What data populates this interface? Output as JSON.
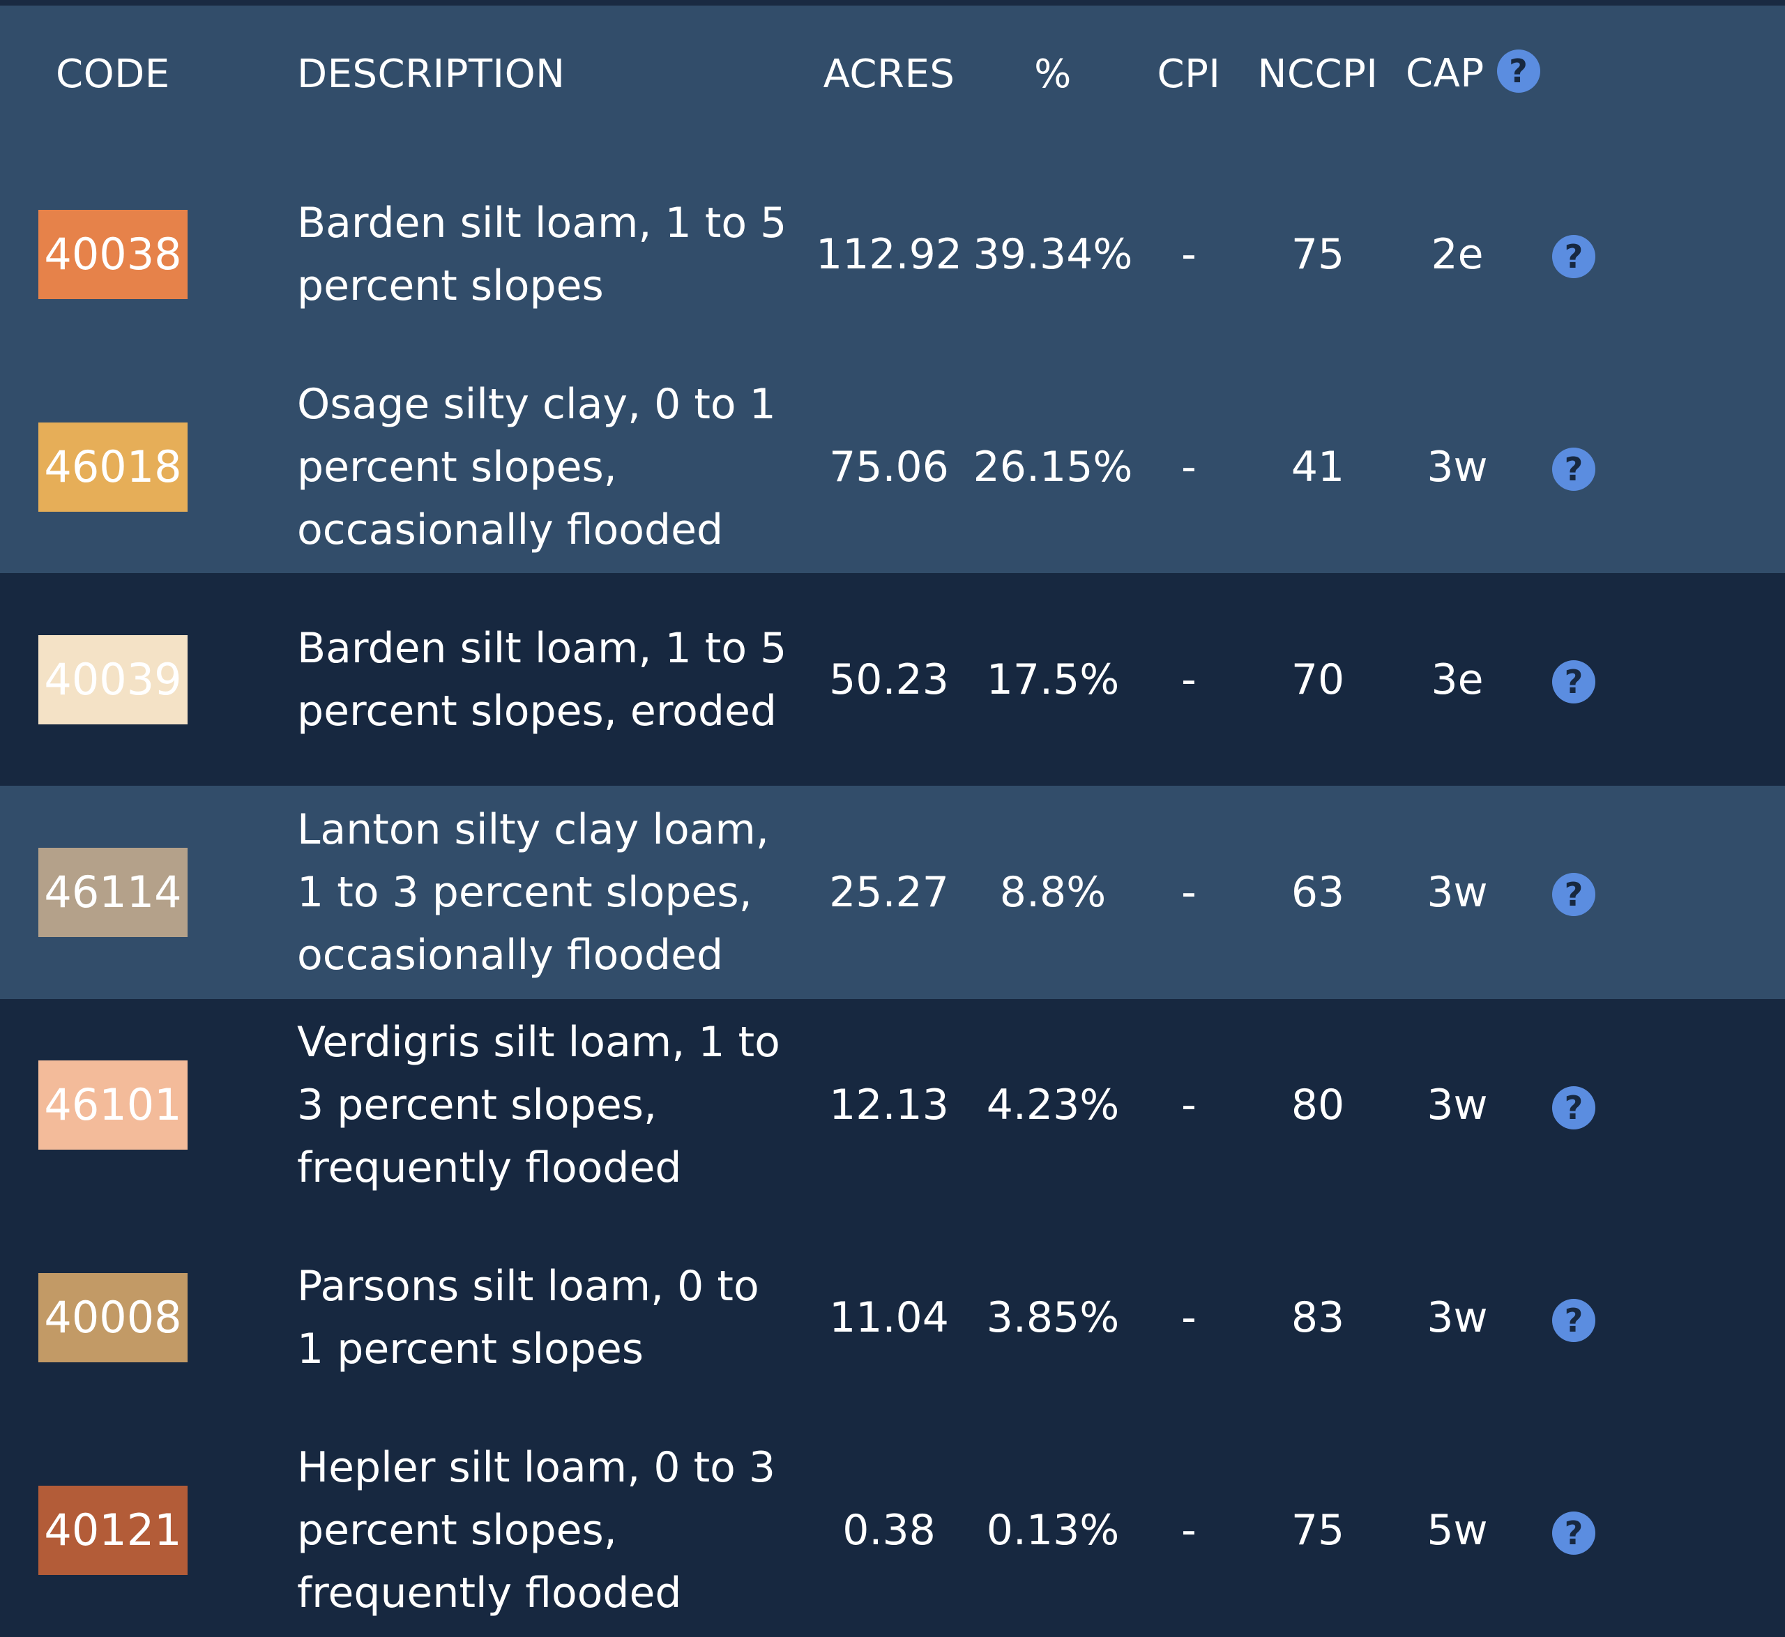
{
  "columns": {
    "code": "CODE",
    "description": "DESCRIPTION",
    "acres": "ACRES",
    "percent": "%",
    "cpi": "CPI",
    "nccpi": "NCCPI",
    "cap": "CAP"
  },
  "help_icon": "question-circle-icon",
  "rows": [
    {
      "code": "40038",
      "color": "#e6824a",
      "description": "Barden silt loam, 1 to 5 percent slopes",
      "acres": "112.92",
      "percent": "39.34%",
      "cpi": "-",
      "nccpi": "75",
      "cap": "2e"
    },
    {
      "code": "46018",
      "color": "#e6ae58",
      "description": "Osage silty clay, 0 to 1 percent slopes, occasionally flooded",
      "acres": "75.06",
      "percent": "26.15%",
      "cpi": "-",
      "nccpi": "41",
      "cap": "3w"
    },
    {
      "code": "40039",
      "color": "#f4e2c6",
      "description": "Barden silt loam, 1 to 5 percent slopes, eroded",
      "acres": "50.23",
      "percent": "17.5%",
      "cpi": "-",
      "nccpi": "70",
      "cap": "3e"
    },
    {
      "code": "46114",
      "color": "#b4a18a",
      "description": "Lanton silty clay loam, 1 to 3 percent slopes, occasionally flooded",
      "acres": "25.27",
      "percent": "8.8%",
      "cpi": "-",
      "nccpi": "63",
      "cap": "3w"
    },
    {
      "code": "46101",
      "color": "#f3bb9a",
      "description": "Verdigris silt loam, 1 to 3 percent slopes, frequently flooded",
      "acres": "12.13",
      "percent": "4.23%",
      "cpi": "-",
      "nccpi": "80",
      "cap": "3w"
    },
    {
      "code": "40008",
      "color": "#c29a66",
      "description": "Parsons silt loam, 0 to 1 percent slopes",
      "acres": "11.04",
      "percent": "3.85%",
      "cpi": "-",
      "nccpi": "83",
      "cap": "3w"
    },
    {
      "code": "40121",
      "color": "#b35c38",
      "description": "Hepler silt loam, 0 to 3 percent slopes, frequently flooded",
      "acres": "0.38",
      "percent": "0.13%",
      "cpi": "-",
      "nccpi": "75",
      "cap": "5w"
    }
  ]
}
